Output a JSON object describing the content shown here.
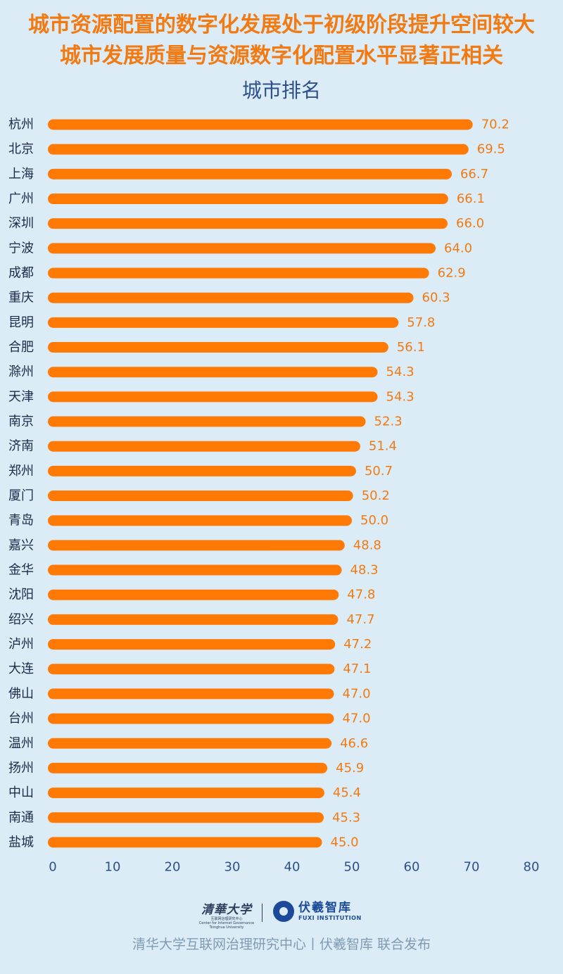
{
  "title_line1": "城市资源配置的数字化发展处于初级阶段提升空间较大",
  "title_line2": "城市发展质量与资源数字化配置水平显著正相关",
  "colors": {
    "bar": "#ff7a05",
    "label": "#f27a12",
    "axis": "#2d4f8c",
    "background": "#dcecf7"
  },
  "chart_data": {
    "type": "bar",
    "orientation": "horizontal",
    "title": "城市排名",
    "categories": [
      "杭州",
      "北京",
      "上海",
      "广州",
      "深圳",
      "宁波",
      "成都",
      "重庆",
      "昆明",
      "合肥",
      "滁州",
      "天津",
      "南京",
      "济南",
      "郑州",
      "厦门",
      "青岛",
      "嘉兴",
      "金华",
      "沈阳",
      "绍兴",
      "泸州",
      "大连",
      "佛山",
      "台州",
      "温州",
      "扬州",
      "中山",
      "南通",
      "盐城"
    ],
    "values": [
      70.2,
      69.5,
      66.7,
      66.1,
      66.0,
      64.0,
      62.9,
      60.3,
      57.8,
      56.1,
      54.3,
      54.3,
      52.3,
      51.4,
      50.7,
      50.2,
      50.0,
      48.8,
      48.3,
      47.8,
      47.7,
      47.2,
      47.1,
      47.0,
      47.0,
      46.6,
      45.9,
      45.4,
      45.3,
      45.0
    ],
    "value_labels": [
      "70.2",
      "69.5",
      "66.7",
      "66.1",
      "66.0",
      "64.0",
      "62.9",
      "60.3",
      "57.8",
      "56.1",
      "54.3",
      "54.3",
      "52.3",
      "51.4",
      "50.7",
      "50.2",
      "50.0",
      "48.8",
      "48.3",
      "47.8",
      "47.7",
      "47.2",
      "47.1",
      "47.0",
      "47.0",
      "46.6",
      "45.9",
      "45.4",
      "45.3",
      "45.0"
    ],
    "xlim": [
      0,
      80
    ],
    "xticks": [
      0,
      10,
      20,
      30,
      40,
      50,
      60,
      70,
      80
    ],
    "xtick_labels": [
      "0",
      "10",
      "20",
      "30",
      "40",
      "50",
      "60",
      "70",
      "80"
    ],
    "grid": false,
    "legend": "none"
  },
  "logos": {
    "tsinghua_name": "清華大学",
    "tsinghua_cn": "互联网治理研究中心",
    "tsinghua_en1": "Center for Internet Governance",
    "tsinghua_en2": "Tsinghua University",
    "fuxi_cn": "伏羲智库",
    "fuxi_en": "FUXI INSTITUTION"
  },
  "footer": "清华大学互联网治理研究中心丨伏羲智库  联合发布"
}
